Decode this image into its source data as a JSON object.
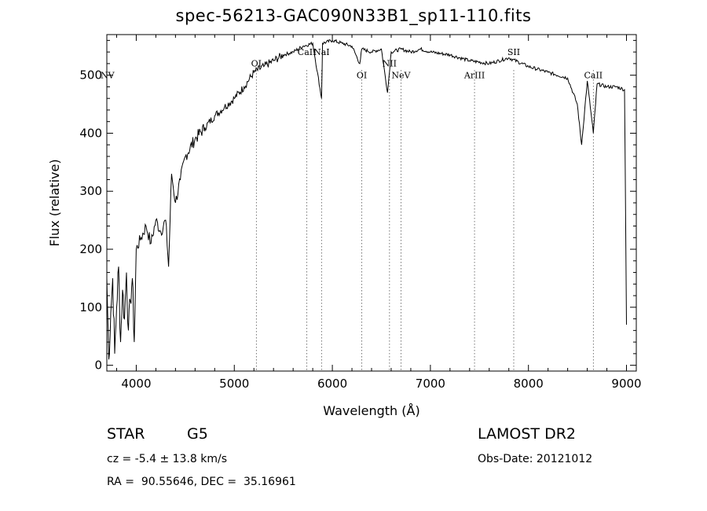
{
  "title": "spec-56213-GAC090N33B1_sp11-110.fits",
  "info": {
    "class": "STAR",
    "subclass": "G5",
    "survey": "LAMOST DR2",
    "cz": "cz = -5.4 ± 13.8 km/s",
    "obs_date": "Obs-Date: 20121012",
    "coords": "RA =  90.55646, DEC =  35.16961"
  },
  "chart_data": {
    "type": "line",
    "title": "spec-56213-GAC090N33B1_sp11-110.fits",
    "xlabel": "Wavelength (Å)",
    "ylabel": "Flux (relative)",
    "xlim": [
      3700,
      9100
    ],
    "ylim": [
      -10,
      570
    ],
    "xticks": [
      4000,
      5000,
      6000,
      7000,
      8000,
      9000
    ],
    "yticks": [
      0,
      100,
      200,
      300,
      400,
      500
    ],
    "grid": false,
    "series": [
      {
        "x": [
          3700,
          3720,
          3740,
          3760,
          3780,
          3800,
          3820,
          3840,
          3860,
          3880,
          3900,
          3920,
          3940,
          3960,
          3980,
          4000,
          4050,
          4100,
          4150,
          4200,
          4250,
          4300,
          4330,
          4360,
          4400,
          4450,
          4500,
          4600,
          4700,
          4800,
          4900,
          5000,
          5100,
          5200,
          5300,
          5400,
          5500,
          5600,
          5700,
          5800,
          5890,
          5900,
          6000,
          6100,
          6200,
          6280,
          6300,
          6400,
          6500,
          6563,
          6600,
          6700,
          6800,
          6900,
          7000,
          7200,
          7400,
          7600,
          7800,
          8000,
          8200,
          8400,
          8498,
          8542,
          8600,
          8662,
          8700,
          8800,
          8900,
          8980,
          9000
        ],
        "values": [
          150,
          10,
          90,
          150,
          20,
          100,
          170,
          40,
          130,
          80,
          160,
          60,
          110,
          150,
          40,
          200,
          220,
          240,
          210,
          250,
          230,
          250,
          170,
          330,
          280,
          320,
          360,
          390,
          410,
          430,
          445,
          460,
          480,
          505,
          515,
          525,
          535,
          540,
          550,
          555,
          460,
          555,
          560,
          555,
          550,
          520,
          545,
          540,
          545,
          470,
          540,
          545,
          540,
          545,
          540,
          535,
          525,
          520,
          530,
          515,
          505,
          495,
          450,
          380,
          490,
          400,
          485,
          480,
          480,
          475,
          70
        ]
      }
    ],
    "lines": [
      {
        "name": "NV",
        "x": 3700
      },
      {
        "name": "OI",
        "x": 5225
      },
      {
        "name": "CaII",
        "x": 5740
      },
      {
        "name": "NaI",
        "x": 5890
      },
      {
        "name": "OI",
        "x": 6300
      },
      {
        "name": "NII",
        "x": 6583
      },
      {
        "name": "NeV",
        "x": 6700
      },
      {
        "name": "ArIII",
        "x": 7450
      },
      {
        "name": "SII",
        "x": 7850
      },
      {
        "name": "CaII",
        "x": 8662
      }
    ]
  }
}
